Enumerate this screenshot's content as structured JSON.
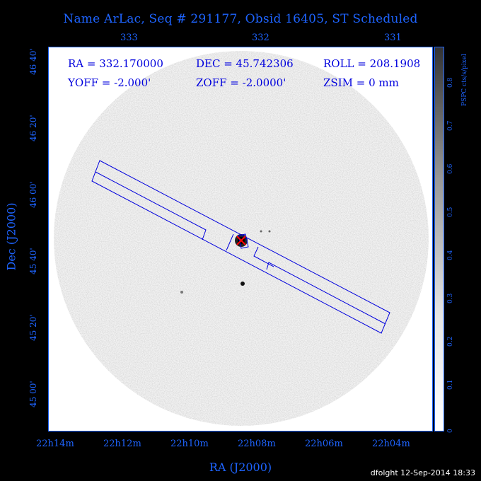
{
  "title": "Name ArLac, Seq # 291177, Obsid 16405, ST Scheduled",
  "info": {
    "ra": "RA = 332.170000",
    "dec": "DEC = 45.742306",
    "roll": "ROLL = 208.1908",
    "yoff": "YOFF = -2.000'",
    "zoff": "ZOFF = -2.0000'",
    "zsim": "ZSIM = 0 mm"
  },
  "top_axis": [
    "333",
    "332",
    "331"
  ],
  "bottom_axis": [
    "22h14m",
    "22h12m",
    "22h10m",
    "22h08m",
    "22h06m",
    "22h04m"
  ],
  "left_axis": [
    "46 40'",
    "46 20'",
    "46 00'",
    "45 40'",
    "45 20'",
    "45 00'"
  ],
  "xlabel": "RA (J2000)",
  "ylabel": "Dec (J2000)",
  "colorbar": {
    "title": "PSPC cts/s/pixel",
    "ticks": [
      "0",
      "0.1",
      "0.2",
      "0.3",
      "0.4",
      "0.5",
      "0.6",
      "0.7",
      "0.8"
    ]
  },
  "footer": "dfolght 12-Sep-2014 18:33",
  "colors": {
    "axis": "#1e64ff",
    "overlay": "#0000dd",
    "source_marker": "#ff0000"
  }
}
